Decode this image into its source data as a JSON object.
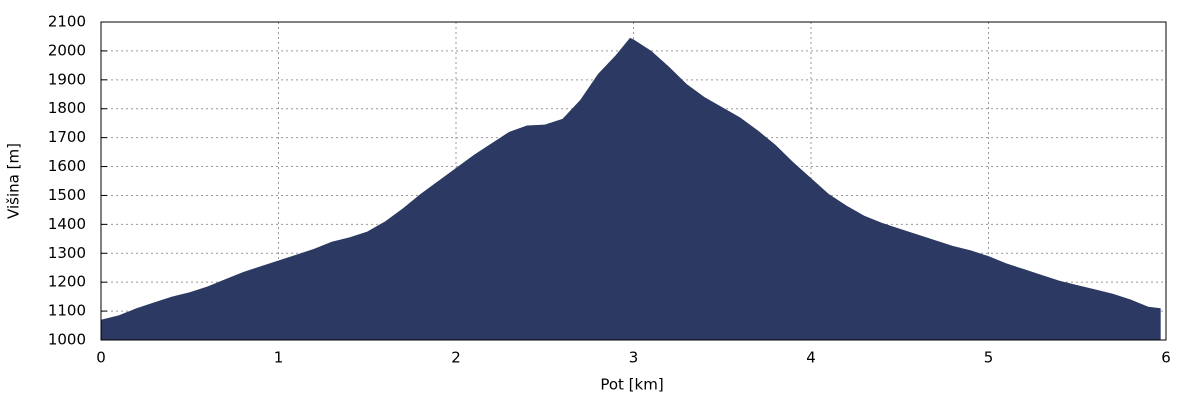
{
  "chart_data": {
    "type": "area",
    "x_label": "Pot [km]",
    "y_label": "Višina [m]",
    "x": [
      0,
      0.1,
      0.2,
      0.3,
      0.4,
      0.5,
      0.6,
      0.7,
      0.8,
      0.9,
      1.0,
      1.1,
      1.2,
      1.3,
      1.4,
      1.5,
      1.6,
      1.7,
      1.8,
      1.9,
      2.0,
      2.1,
      2.2,
      2.3,
      2.4,
      2.5,
      2.6,
      2.7,
      2.8,
      2.9,
      2.98,
      3.0,
      3.1,
      3.2,
      3.3,
      3.4,
      3.5,
      3.6,
      3.7,
      3.8,
      3.9,
      4.0,
      4.1,
      4.2,
      4.3,
      4.4,
      4.5,
      4.6,
      4.7,
      4.8,
      4.9,
      5.0,
      5.1,
      5.2,
      5.3,
      5.4,
      5.5,
      5.6,
      5.7,
      5.8,
      5.9,
      5.97
    ],
    "values": [
      1070,
      1085,
      1110,
      1130,
      1150,
      1165,
      1185,
      1210,
      1235,
      1255,
      1275,
      1295,
      1315,
      1340,
      1355,
      1375,
      1410,
      1455,
      1505,
      1550,
      1595,
      1640,
      1680,
      1720,
      1742,
      1745,
      1765,
      1830,
      1920,
      1985,
      2045,
      2040,
      2000,
      1945,
      1885,
      1840,
      1805,
      1770,
      1725,
      1675,
      1615,
      1560,
      1505,
      1465,
      1430,
      1405,
      1385,
      1365,
      1345,
      1325,
      1310,
      1290,
      1265,
      1245,
      1225,
      1205,
      1190,
      1175,
      1160,
      1140,
      1115,
      1110
    ],
    "color": "#2c3a63",
    "xlim": [
      0,
      6
    ],
    "xticks": [
      0,
      1,
      2,
      3,
      4,
      5,
      6
    ],
    "ylim": [
      1000,
      2100
    ],
    "yticks": [
      1000,
      1100,
      1200,
      1300,
      1400,
      1500,
      1600,
      1700,
      1800,
      1900,
      2000,
      2100
    ],
    "grid": true
  }
}
